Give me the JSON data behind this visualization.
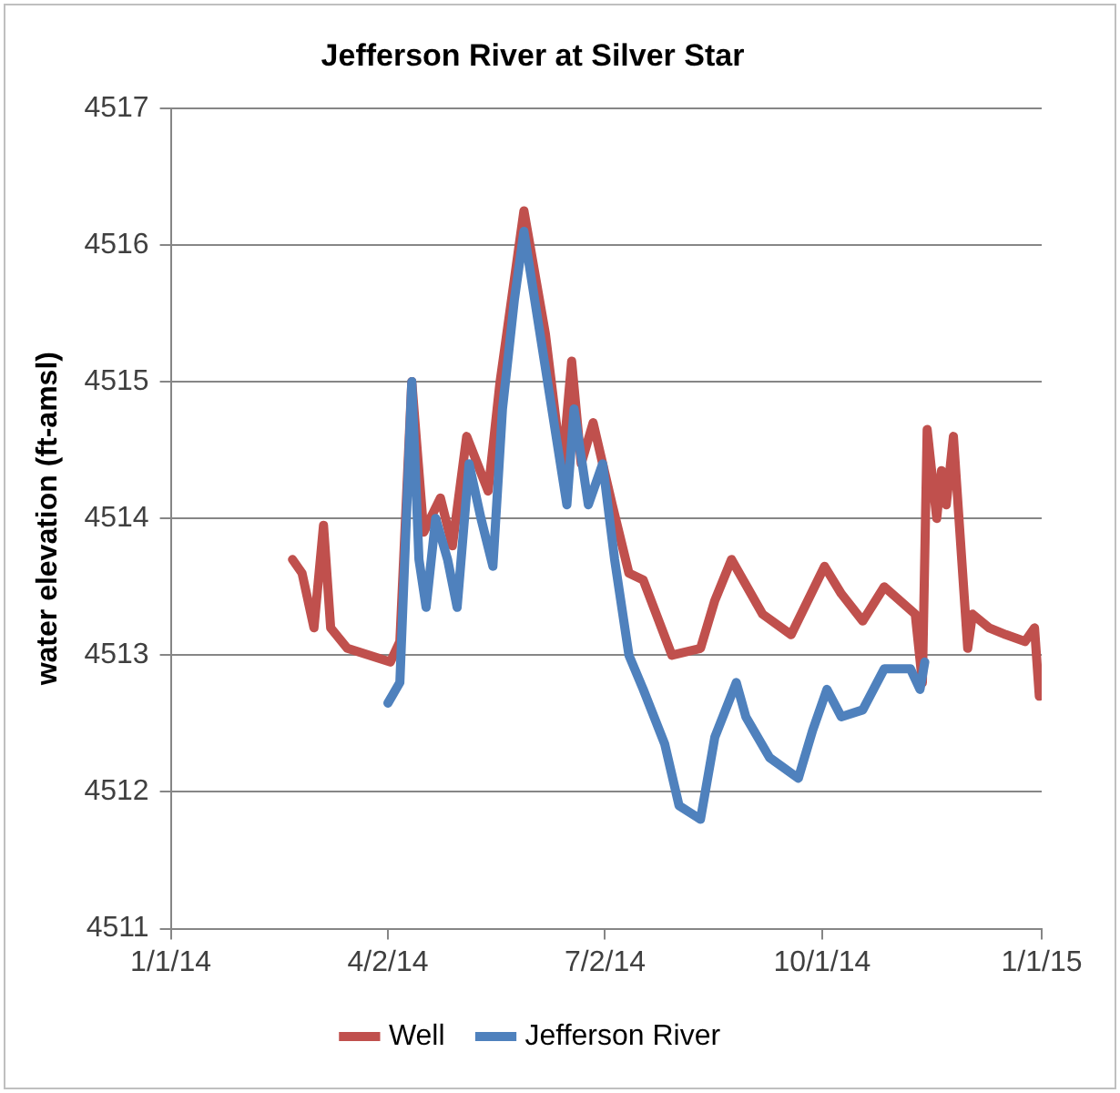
{
  "chart_data": {
    "type": "line",
    "title": "Jefferson River at Silver Star",
    "ylabel": "water elevation (ft-amsl)",
    "xlim": [
      "2014-01-01",
      "2015-01-01"
    ],
    "xticks": [
      {
        "value": "2014-01-01",
        "label": "1/1/14"
      },
      {
        "value": "2014-04-02",
        "label": "4/2/14"
      },
      {
        "value": "2014-07-02",
        "label": "7/2/14"
      },
      {
        "value": "2014-10-01",
        "label": "10/1/14"
      },
      {
        "value": "2015-01-01",
        "label": "1/1/15"
      }
    ],
    "ylim": [
      4511,
      4517
    ],
    "yticks": [
      4511,
      4512,
      4513,
      4514,
      4515,
      4516,
      4517
    ],
    "grid": "y",
    "legend": "bottom",
    "marker": "none",
    "line_style": "solid",
    "series": [
      {
        "name": "Well",
        "color": "#c0504d",
        "x": [
          "2014-02-21",
          "2014-02-25",
          "2014-03-02",
          "2014-03-06",
          "2014-03-09",
          "2014-03-16",
          "2014-04-03",
          "2014-04-07",
          "2014-04-12",
          "2014-04-17",
          "2014-04-24",
          "2014-04-29",
          "2014-05-05",
          "2014-05-14",
          "2014-05-19",
          "2014-05-29",
          "2014-06-07",
          "2014-06-14",
          "2014-06-18",
          "2014-06-22",
          "2014-06-27",
          "2014-07-05",
          "2014-07-12",
          "2014-07-18",
          "2014-07-30",
          "2014-08-11",
          "2014-08-17",
          "2014-08-24",
          "2014-09-06",
          "2014-09-18",
          "2014-10-02",
          "2014-10-09",
          "2014-10-18",
          "2014-10-27",
          "2014-11-09",
          "2014-11-12",
          "2014-11-14",
          "2014-11-18",
          "2014-11-20",
          "2014-11-22",
          "2014-11-25",
          "2014-12-01",
          "2014-12-03",
          "2014-12-10",
          "2014-12-17",
          "2014-12-25",
          "2014-12-29",
          "2014-12-31"
        ],
        "values": [
          4513.7,
          4513.6,
          4513.2,
          4513.95,
          4513.2,
          4513.05,
          4512.95,
          4513.1,
          4515.0,
          4513.9,
          4514.15,
          4513.8,
          4514.6,
          4514.2,
          4515.0,
          4516.25,
          4515.35,
          4514.35,
          4515.15,
          4514.4,
          4514.7,
          4514.1,
          4513.6,
          4513.55,
          4513.0,
          4513.05,
          4513.4,
          4513.7,
          4513.3,
          4513.15,
          4513.65,
          4513.45,
          4513.25,
          4513.5,
          4513.3,
          4512.8,
          4514.65,
          4514.0,
          4514.35,
          4514.1,
          4514.6,
          4513.05,
          4513.3,
          4513.2,
          4513.15,
          4513.1,
          4513.2,
          4512.7
        ]
      },
      {
        "name": "Jefferson River",
        "color": "#4f81bd",
        "x": [
          "2014-04-02",
          "2014-04-07",
          "2014-04-12",
          "2014-04-15",
          "2014-04-18",
          "2014-04-22",
          "2014-04-27",
          "2014-05-01",
          "2014-05-06",
          "2014-05-11",
          "2014-05-16",
          "2014-05-20",
          "2014-05-25",
          "2014-05-29",
          "2014-06-07",
          "2014-06-16",
          "2014-06-19",
          "2014-06-25",
          "2014-07-01",
          "2014-07-06",
          "2014-07-12",
          "2014-07-18",
          "2014-07-27",
          "2014-08-02",
          "2014-08-11",
          "2014-08-17",
          "2014-08-26",
          "2014-08-30",
          "2014-09-09",
          "2014-09-21",
          "2014-09-27",
          "2014-10-03",
          "2014-10-09",
          "2014-10-18",
          "2014-10-27",
          "2014-11-07",
          "2014-11-11",
          "2014-11-13"
        ],
        "values": [
          4512.65,
          4512.8,
          4515.0,
          4513.7,
          4513.35,
          4514.0,
          4513.7,
          4513.35,
          4514.4,
          4514.0,
          4513.65,
          4514.8,
          4515.6,
          4516.1,
          4515.1,
          4514.1,
          4514.8,
          4514.1,
          4514.4,
          4513.7,
          4513.0,
          4512.75,
          4512.35,
          4511.9,
          4511.8,
          4512.4,
          4512.8,
          4512.55,
          4512.25,
          4512.1,
          4512.45,
          4512.75,
          4512.55,
          4512.6,
          4512.9,
          4512.9,
          4512.75,
          4512.95
        ]
      }
    ]
  }
}
